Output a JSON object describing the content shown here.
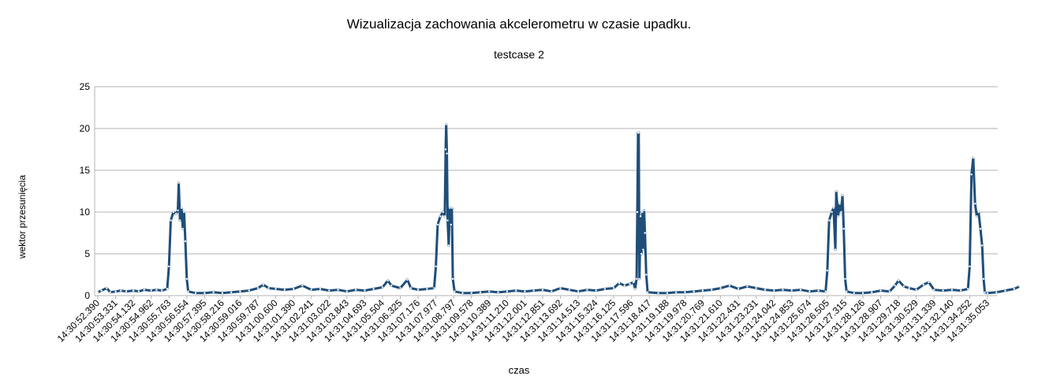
{
  "chart_data": {
    "type": "line",
    "title": "Wizualizacja zachowania akcelerometru w czasie upadku.",
    "subtitle": "testcase 2",
    "xlabel": "czas",
    "ylabel": "wektor przesunięcia",
    "ylim": [
      0,
      25
    ],
    "yticks": [
      0,
      5,
      10,
      15,
      20,
      25
    ],
    "grid": "horizontal",
    "legend": "none",
    "colors": {
      "line": "#1f4e79",
      "marker": "#ffffff",
      "grid": "#b3b3b3",
      "axis": "#b3b3b3"
    },
    "categories": [
      "14:30:52.390",
      "14:30:53.331",
      "14:30:54.132",
      "14:30:54.962",
      "14:30:55.763",
      "14:30:56.554",
      "14:30:57.395",
      "14:30:58.216",
      "14:30:59.016",
      "14:30:59.787",
      "14:31:00.600",
      "14:31:01.390",
      "14:31:02.241",
      "14:31:03.022",
      "14:31:03.843",
      "14:31:04.693",
      "14:31:05.504",
      "14:31:06.325",
      "14:31:07.176",
      "14:31:07.977",
      "14:31:08.797",
      "14:31:09.578",
      "14:31:10.389",
      "14:31:11.210",
      "14:31:12.001",
      "14:31:12.851",
      "14:31:13.692",
      "14:31:14.513",
      "14:31:15.324",
      "14:31:16.125",
      "14:31:17.596",
      "14:31:18.417",
      "14:31:19.188",
      "14:31:19.978",
      "14:31:20.769",
      "14:31:21.610",
      "14:31:22.431",
      "14:31:23.231",
      "14:31:24.042",
      "14:31:24.853",
      "14:31:25.674",
      "14:31:26.505",
      "14:31:27.315",
      "14:31:28.126",
      "14:31:28.907",
      "14:31:29.718",
      "14:31:30.529",
      "14:31:31.339",
      "14:31:32.140",
      "14:31:34.252",
      "14:31:35.053"
    ],
    "series": [
      {
        "points": [
          [
            0,
            0.4
          ],
          [
            0.2,
            0.6
          ],
          [
            0.5,
            0.9
          ],
          [
            0.7,
            0.4
          ],
          [
            1,
            0.5
          ],
          [
            1.3,
            0.6
          ],
          [
            1.6,
            0.5
          ],
          [
            2,
            0.6
          ],
          [
            2.3,
            0.5
          ],
          [
            2.6,
            0.7
          ],
          [
            3,
            0.6
          ],
          [
            3.3,
            0.7
          ],
          [
            3.6,
            0.6
          ],
          [
            3.9,
            0.8
          ],
          [
            4.0,
            3.5
          ],
          [
            4.1,
            9.0
          ],
          [
            4.25,
            10.0
          ],
          [
            4.4,
            9.8
          ],
          [
            4.5,
            10.2
          ],
          [
            4.55,
            13.5
          ],
          [
            4.62,
            9.0
          ],
          [
            4.7,
            10.5
          ],
          [
            4.78,
            8.0
          ],
          [
            4.85,
            10.0
          ],
          [
            4.92,
            6.5
          ],
          [
            5.0,
            2.0
          ],
          [
            5.08,
            0.5
          ],
          [
            5.5,
            0.3
          ],
          [
            6,
            0.3
          ],
          [
            6.5,
            0.4
          ],
          [
            7,
            0.3
          ],
          [
            7.5,
            0.4
          ],
          [
            8,
            0.5
          ],
          [
            8.5,
            0.6
          ],
          [
            9,
            0.9
          ],
          [
            9.3,
            1.3
          ],
          [
            9.6,
            0.9
          ],
          [
            10,
            0.8
          ],
          [
            10.5,
            0.7
          ],
          [
            11,
            0.8
          ],
          [
            11.5,
            1.2
          ],
          [
            12,
            0.7
          ],
          [
            12.5,
            0.8
          ],
          [
            13,
            0.6
          ],
          [
            13.5,
            0.7
          ],
          [
            14,
            0.5
          ],
          [
            14.5,
            0.7
          ],
          [
            15,
            0.6
          ],
          [
            15.5,
            0.8
          ],
          [
            16,
            1.0
          ],
          [
            16.3,
            1.8
          ],
          [
            16.5,
            1.2
          ],
          [
            17,
            0.9
          ],
          [
            17.4,
            1.9
          ],
          [
            17.6,
            0.9
          ],
          [
            18,
            0.7
          ],
          [
            18.5,
            0.8
          ],
          [
            18.9,
            0.9
          ],
          [
            19.0,
            3.5
          ],
          [
            19.1,
            8.5
          ],
          [
            19.25,
            9.5
          ],
          [
            19.4,
            10.0
          ],
          [
            19.5,
            9.5
          ],
          [
            19.55,
            17.5
          ],
          [
            19.58,
            20.5
          ],
          [
            19.62,
            17.0
          ],
          [
            19.66,
            9.0
          ],
          [
            19.72,
            6.0
          ],
          [
            19.78,
            10.5
          ],
          [
            19.85,
            8.5
          ],
          [
            19.9,
            10.5
          ],
          [
            19.95,
            2.0
          ],
          [
            20.05,
            0.5
          ],
          [
            20.5,
            0.3
          ],
          [
            21,
            0.3
          ],
          [
            21.5,
            0.4
          ],
          [
            22,
            0.5
          ],
          [
            22.5,
            0.4
          ],
          [
            23,
            0.5
          ],
          [
            23.5,
            0.6
          ],
          [
            24,
            0.5
          ],
          [
            24.5,
            0.6
          ],
          [
            25,
            0.7
          ],
          [
            25.5,
            0.5
          ],
          [
            26,
            0.9
          ],
          [
            26.5,
            0.7
          ],
          [
            27,
            0.5
          ],
          [
            27.5,
            0.7
          ],
          [
            28,
            0.6
          ],
          [
            28.5,
            0.8
          ],
          [
            29,
            0.9
          ],
          [
            29.3,
            1.5
          ],
          [
            29.6,
            1.2
          ],
          [
            29.9,
            1.4
          ],
          [
            30.1,
            1.6
          ],
          [
            30.2,
            0.8
          ],
          [
            30.28,
            2.0
          ],
          [
            30.32,
            10.0
          ],
          [
            30.36,
            19.5
          ],
          [
            30.4,
            19.5
          ],
          [
            30.44,
            2.0
          ],
          [
            30.5,
            9.5
          ],
          [
            30.55,
            5.0
          ],
          [
            30.6,
            10.0
          ],
          [
            30.65,
            5.5
          ],
          [
            30.7,
            10.2
          ],
          [
            30.75,
            7.5
          ],
          [
            30.82,
            2.5
          ],
          [
            30.9,
            0.4
          ],
          [
            31.5,
            0.3
          ],
          [
            32,
            0.3
          ],
          [
            32.5,
            0.4
          ],
          [
            33,
            0.4
          ],
          [
            33.5,
            0.5
          ],
          [
            34,
            0.6
          ],
          [
            34.5,
            0.7
          ],
          [
            35,
            0.9
          ],
          [
            35.5,
            1.2
          ],
          [
            36,
            0.8
          ],
          [
            36.5,
            1.1
          ],
          [
            37,
            0.9
          ],
          [
            37.5,
            0.7
          ],
          [
            38,
            0.6
          ],
          [
            38.5,
            0.7
          ],
          [
            39,
            0.6
          ],
          [
            39.5,
            0.7
          ],
          [
            40,
            0.5
          ],
          [
            40.5,
            0.6
          ],
          [
            40.9,
            0.5
          ],
          [
            41.0,
            3.0
          ],
          [
            41.1,
            9.0
          ],
          [
            41.25,
            10.0
          ],
          [
            41.35,
            10.5
          ],
          [
            41.45,
            5.5
          ],
          [
            41.5,
            12.5
          ],
          [
            41.6,
            9.5
          ],
          [
            41.7,
            11.0
          ],
          [
            41.78,
            10.0
          ],
          [
            41.85,
            12.0
          ],
          [
            41.92,
            8.0
          ],
          [
            42.0,
            2.0
          ],
          [
            42.08,
            0.5
          ],
          [
            42.5,
            0.3
          ],
          [
            43,
            0.3
          ],
          [
            43.5,
            0.4
          ],
          [
            44,
            0.6
          ],
          [
            44.5,
            0.5
          ],
          [
            44.8,
            1.2
          ],
          [
            45.0,
            1.8
          ],
          [
            45.3,
            1.1
          ],
          [
            45.6,
            0.9
          ],
          [
            46,
            0.7
          ],
          [
            46.4,
            1.3
          ],
          [
            46.7,
            1.6
          ],
          [
            47,
            0.7
          ],
          [
            47.5,
            0.6
          ],
          [
            48,
            0.7
          ],
          [
            48.5,
            0.6
          ],
          [
            48.9,
            0.8
          ],
          [
            49.0,
            3.5
          ],
          [
            49.1,
            14.5
          ],
          [
            49.2,
            16.5
          ],
          [
            49.3,
            11.0
          ],
          [
            49.4,
            9.5
          ],
          [
            49.5,
            10.0
          ],
          [
            49.6,
            8.0
          ],
          [
            49.7,
            6.0
          ],
          [
            49.78,
            2.0
          ],
          [
            49.85,
            0.4
          ],
          [
            50,
            0.3
          ],
          [
            50.5,
            0.4
          ],
          [
            51,
            0.6
          ],
          [
            51.5,
            0.8
          ],
          [
            51.8,
            1.1
          ]
        ]
      }
    ]
  }
}
